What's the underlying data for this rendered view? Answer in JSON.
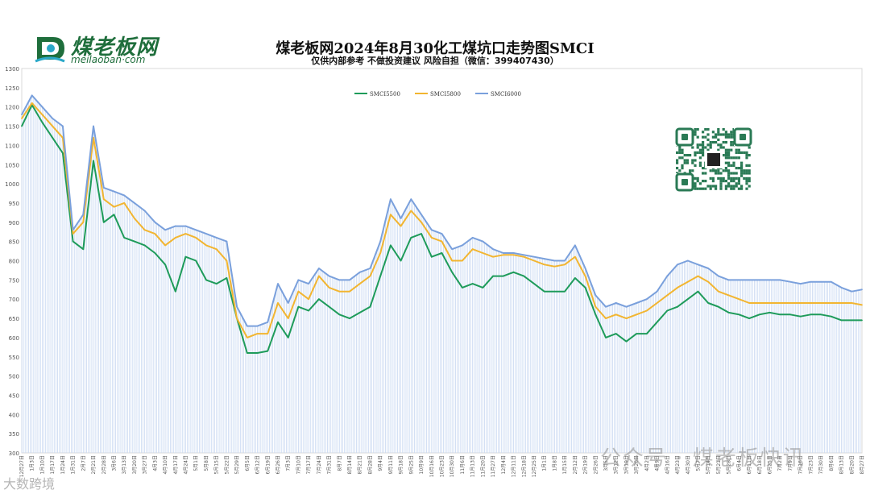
{
  "header": {
    "brand": "煤老板网",
    "site": "meilaoban·com",
    "title": "煤老板网2024年8月30化工煤坑口走势图SMCI",
    "subtitle": "仅供内部参考 不做投资建议 风险自担（微信：399407430）"
  },
  "watermark": {
    "text": "公众号 · 煤老板快讯",
    "corner": "大数跨境"
  },
  "colors": {
    "s5500": "#1e9b5a",
    "s5800": "#f2b530",
    "s6000": "#7aa0dc",
    "fill": "#c9d9f2",
    "logo": "#1f6e3c"
  },
  "icons": {
    "qr": "qr-code-icon",
    "logo": "logo-icon"
  },
  "chart_data": {
    "type": "line",
    "title": "煤老板网2024年8月30化工煤坑口走势图SMCI",
    "subtitle": "仅供内部参考 不做投资建议 风险自担（微信：399407430）",
    "ylim": [
      300,
      1300
    ],
    "yticks": [
      300,
      350,
      400,
      450,
      500,
      550,
      600,
      650,
      700,
      750,
      800,
      850,
      900,
      950,
      1000,
      1050,
      1100,
      1150,
      1200,
      1250,
      1300
    ],
    "legend": {
      "position": "top-center",
      "entries": [
        "SMCI5500",
        "SMCI5800",
        "SMCI6000"
      ]
    },
    "x": [
      "2023-12-27",
      "2024-01-03",
      "2024-01-10",
      "2024-01-17",
      "2024-01-24",
      "2024-01-31",
      "2024-02-07",
      "2024-02-21",
      "2024-02-28",
      "2024-03-06",
      "2024-03-13",
      "2024-03-20",
      "2024-03-27",
      "2024-04-03",
      "2024-04-10",
      "2024-04-17",
      "2024-04-24",
      "2024-05-01",
      "2024-05-08",
      "2024-05-15",
      "2024-05-22",
      "2024-05-29",
      "2024-06-05",
      "2024-06-12",
      "2024-06-19",
      "2024-06-26",
      "2024-07-03",
      "2024-07-10",
      "2024-07-17",
      "2024-07-24",
      "2024-07-31",
      "2024-08-07",
      "2024-08-14",
      "2024-08-21",
      "2024-08-28",
      "2024-09-04",
      "2024-09-11",
      "2024-09-18",
      "2024-09-25",
      "2024-10-09",
      "2024-10-16",
      "2024-10-23",
      "2024-10-30",
      "2024-11-06",
      "2024-11-13",
      "2024-11-20",
      "2024-11-27",
      "2024-12-04",
      "2024-12-11",
      "2024-12-18",
      "2024-12-25",
      "2025-01-01",
      "2025-01-08",
      "2025-01-15",
      "2025-02-12",
      "2025-02-19",
      "2025-02-26",
      "2025-03-05",
      "2025-03-12",
      "2025-03-19",
      "2025-03-26",
      "2025-04-02",
      "2025-04-09",
      "2025-04-16",
      "2025-04-23",
      "2025-04-30",
      "2025-05-07",
      "2025-05-14",
      "2025-05-21",
      "2025-05-28",
      "2025-06-04",
      "2025-06-11",
      "2025-06-18",
      "2025-06-25",
      "2025-07-02",
      "2025-07-09",
      "2025-07-16",
      "2025-07-23",
      "2025-07-30",
      "2025-08-06",
      "2025-08-13",
      "2025-08-20",
      "2025-08-27"
    ],
    "xtick_labels": [
      "12月27日",
      "1月3日",
      "1月10日",
      "1月17日",
      "1月24日",
      "1月31日",
      "2月7日",
      "2月21日",
      "2月28日",
      "3月6日",
      "3月13日",
      "3月20日",
      "3月27日",
      "4月3日",
      "4月10日",
      "4月17日",
      "4月24日",
      "5月1日",
      "5月8日",
      "5月15日",
      "5月22日",
      "5月29日",
      "6月5日",
      "6月12日",
      "6月19日",
      "6月26日",
      "7月3日",
      "7月10日",
      "7月17日",
      "7月24日",
      "7月31日",
      "8月7日",
      "8月14日",
      "8月21日",
      "8月28日",
      "9月4日",
      "9月11日",
      "9月18日",
      "9月25日",
      "10月9日",
      "10月16日",
      "10月23日",
      "10月30日",
      "11月6日",
      "11月13日",
      "11月20日",
      "11月27日",
      "12月4日",
      "12月11日",
      "12月18日",
      "12月25日",
      "1月1日",
      "1月8日",
      "1月15日",
      "2月12日",
      "2月19日",
      "2月26日",
      "3月5日",
      "3月12日",
      "3月19日",
      "3月26日",
      "4月2日",
      "4月9日",
      "4月16日",
      "4月23日",
      "4月30日",
      "5月7日",
      "5月14日",
      "5月21日",
      "5月28日",
      "6月4日",
      "6月11日",
      "6月18日",
      "6月25日",
      "7月2日",
      "7月9日",
      "7月16日",
      "7月23日",
      "7月30日",
      "8月6日",
      "8月13日",
      "8月20日",
      "8月27日"
    ],
    "series": [
      {
        "name": "SMCI5500",
        "color": "#1e9b5a",
        "values": [
          1150,
          1205,
          1160,
          1120,
          1080,
          850,
          830,
          1060,
          900,
          920,
          860,
          850,
          840,
          820,
          790,
          720,
          810,
          800,
          750,
          740,
          755,
          650,
          560,
          560,
          565,
          640,
          600,
          680,
          670,
          700,
          680,
          660,
          650,
          665,
          680,
          760,
          840,
          800,
          860,
          870,
          810,
          820,
          770,
          730,
          740,
          730,
          760,
          760,
          770,
          760,
          740,
          720,
          720,
          720,
          755,
          730,
          660,
          600,
          610,
          590,
          610,
          610,
          640,
          670,
          680,
          700,
          720,
          690,
          680,
          665,
          660,
          650,
          660,
          665,
          660,
          660,
          655,
          660,
          660,
          655,
          645,
          645,
          645
        ]
      },
      {
        "name": "SMCI5800",
        "color": "#f2b530",
        "values": [
          1170,
          1210,
          1180,
          1150,
          1120,
          870,
          900,
          1120,
          960,
          940,
          950,
          910,
          880,
          870,
          840,
          860,
          870,
          860,
          840,
          830,
          800,
          650,
          600,
          610,
          610,
          690,
          650,
          720,
          700,
          760,
          730,
          720,
          720,
          740,
          760,
          820,
          920,
          890,
          930,
          900,
          860,
          850,
          800,
          800,
          830,
          820,
          810,
          815,
          815,
          810,
          800,
          790,
          785,
          790,
          810,
          760,
          680,
          650,
          660,
          650,
          660,
          670,
          690,
          710,
          730,
          745,
          760,
          745,
          720,
          710,
          700,
          690,
          690,
          690,
          690,
          690,
          690,
          690,
          690,
          690,
          690,
          690,
          685
        ]
      },
      {
        "name": "SMCI6000",
        "color": "#7aa0dc",
        "values": [
          1180,
          1230,
          1200,
          1170,
          1150,
          880,
          920,
          1150,
          990,
          980,
          970,
          950,
          930,
          900,
          880,
          890,
          890,
          880,
          870,
          860,
          850,
          680,
          630,
          630,
          640,
          740,
          690,
          750,
          740,
          780,
          760,
          750,
          750,
          770,
          780,
          850,
          960,
          910,
          960,
          920,
          880,
          870,
          830,
          840,
          860,
          850,
          830,
          820,
          820,
          815,
          810,
          805,
          800,
          800,
          840,
          780,
          710,
          680,
          690,
          680,
          690,
          700,
          720,
          760,
          790,
          800,
          790,
          780,
          760,
          750,
          750,
          750,
          750,
          750,
          750,
          745,
          740,
          745,
          745,
          745,
          730,
          720,
          725
        ]
      }
    ]
  }
}
